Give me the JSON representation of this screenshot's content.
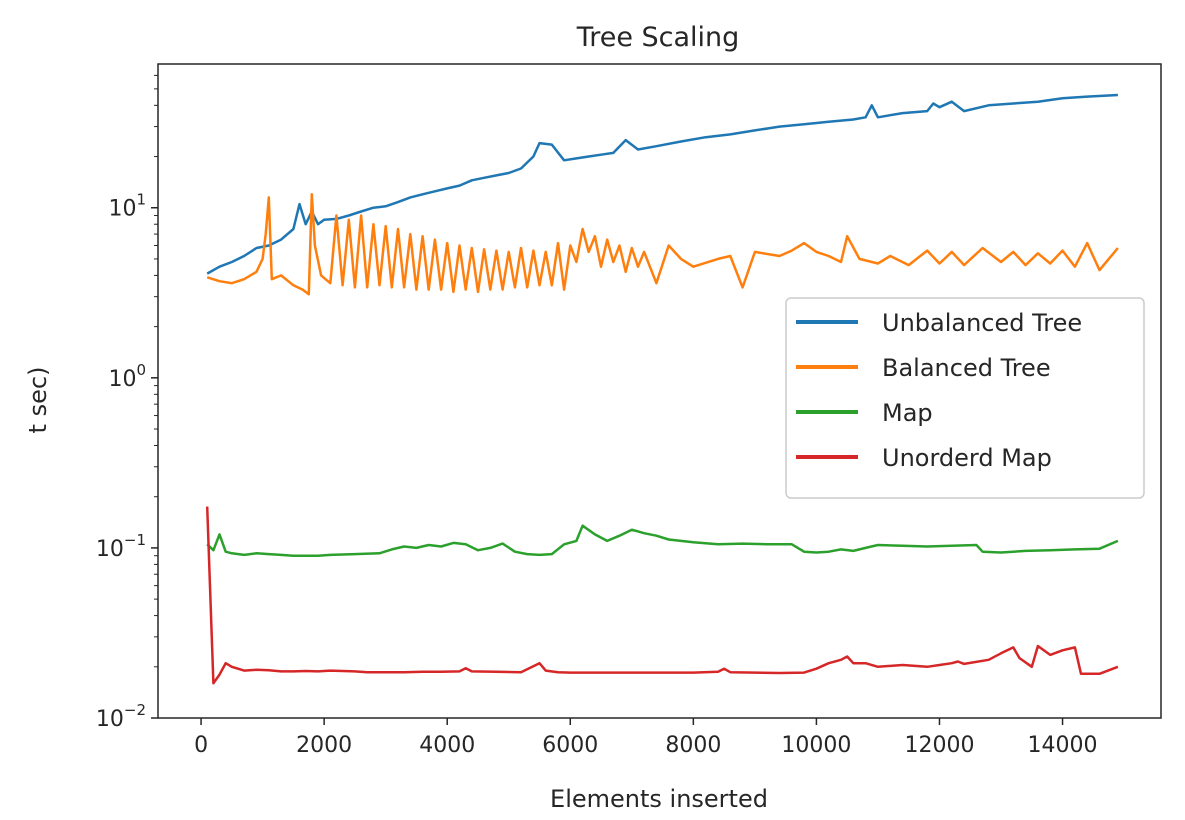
{
  "chart_data": {
    "type": "line",
    "title": "Tree Scaling",
    "xlabel": "Elements inserted",
    "ylabel": "t sec)",
    "xscale": "linear",
    "yscale": "log",
    "xlim": [
      -700,
      15600
    ],
    "ylim": [
      0.01,
      70
    ],
    "xticks": [
      0,
      2000,
      4000,
      6000,
      8000,
      10000,
      12000,
      14000
    ],
    "xtick_labels": [
      "0",
      "2000",
      "4000",
      "6000",
      "8000",
      "10000",
      "12000",
      "14000"
    ],
    "yticks": [
      0.01,
      0.1,
      1,
      10
    ],
    "ytick_labels": [
      {
        "base": "10",
        "exp": "−2"
      },
      {
        "base": "10",
        "exp": "−1"
      },
      {
        "base": "10",
        "exp": "0"
      },
      {
        "base": "10",
        "exp": "1"
      }
    ],
    "grid": false,
    "legend_position": "center-right",
    "series": [
      {
        "name": "Unbalanced Tree",
        "color": "#1f77b4",
        "x": [
          100,
          300,
          500,
          700,
          900,
          1100,
          1300,
          1500,
          1600,
          1700,
          1800,
          1900,
          2000,
          2200,
          2400,
          2600,
          2800,
          3000,
          3200,
          3400,
          3600,
          3800,
          4000,
          4200,
          4400,
          4600,
          4800,
          5000,
          5200,
          5400,
          5500,
          5700,
          5900,
          6100,
          6300,
          6500,
          6700,
          6900,
          7100,
          7400,
          7800,
          8200,
          8600,
          9000,
          9400,
          9800,
          10200,
          10600,
          10800,
          10900,
          11000,
          11400,
          11800,
          11900,
          12000,
          12200,
          12400,
          12800,
          13200,
          13600,
          14000,
          14400,
          14900
        ],
        "values": [
          4.1,
          4.5,
          4.8,
          5.2,
          5.8,
          6.0,
          6.5,
          7.5,
          10.5,
          8.0,
          9.5,
          8.0,
          8.5,
          8.6,
          9.0,
          9.5,
          10.0,
          10.2,
          10.8,
          11.5,
          12.0,
          12.5,
          13.0,
          13.5,
          14.5,
          15.0,
          15.5,
          16.0,
          17.0,
          20.0,
          24.0,
          23.5,
          19.0,
          19.5,
          20.0,
          20.5,
          21.0,
          25.0,
          22.0,
          23.0,
          24.5,
          26.0,
          27.0,
          28.5,
          30.0,
          31.0,
          32.0,
          33.0,
          34.0,
          40.0,
          34.0,
          36.0,
          37.0,
          41.0,
          39.0,
          42.0,
          37.0,
          40.0,
          41.0,
          42.0,
          44.0,
          45.0,
          46.0
        ]
      },
      {
        "name": "Balanced Tree",
        "color": "#ff7f0e",
        "x": [
          100,
          300,
          500,
          700,
          900,
          1000,
          1050,
          1100,
          1150,
          1300,
          1500,
          1650,
          1750,
          1800,
          1850,
          1950,
          2100,
          2200,
          2300,
          2400,
          2500,
          2600,
          2700,
          2800,
          2900,
          3000,
          3100,
          3200,
          3300,
          3400,
          3500,
          3600,
          3700,
          3800,
          3900,
          4000,
          4100,
          4200,
          4300,
          4400,
          4500,
          4600,
          4700,
          4800,
          4900,
          5000,
          5100,
          5200,
          5300,
          5400,
          5500,
          5600,
          5700,
          5800,
          5900,
          6000,
          6100,
          6200,
          6300,
          6400,
          6500,
          6600,
          6700,
          6800,
          6900,
          7000,
          7100,
          7200,
          7400,
          7600,
          7800,
          8000,
          8400,
          8600,
          8800,
          9000,
          9400,
          9600,
          9800,
          10000,
          10200,
          10400,
          10500,
          10700,
          11000,
          11200,
          11500,
          11800,
          12000,
          12200,
          12400,
          12700,
          13000,
          13200,
          13400,
          13600,
          13800,
          14000,
          14200,
          14400,
          14600,
          14900
        ],
        "values": [
          3.9,
          3.7,
          3.6,
          3.8,
          4.2,
          5.0,
          7.0,
          11.5,
          3.8,
          4.0,
          3.5,
          3.3,
          3.1,
          12.0,
          6.0,
          4.0,
          3.6,
          9.0,
          3.5,
          8.5,
          3.4,
          9.0,
          3.4,
          8.0,
          3.5,
          7.8,
          3.4,
          7.5,
          3.4,
          7.0,
          3.3,
          6.8,
          3.3,
          6.5,
          3.3,
          6.2,
          3.2,
          6.0,
          3.3,
          5.8,
          3.2,
          5.7,
          3.3,
          5.6,
          3.3,
          5.5,
          3.4,
          5.8,
          3.4,
          5.6,
          3.5,
          5.5,
          3.5,
          6.2,
          3.3,
          6.0,
          4.8,
          7.5,
          5.5,
          6.8,
          4.5,
          6.5,
          4.8,
          6.0,
          4.2,
          5.8,
          4.5,
          5.5,
          3.6,
          6.0,
          5.0,
          4.5,
          5.0,
          5.2,
          3.4,
          5.5,
          5.2,
          5.6,
          6.2,
          5.5,
          5.2,
          4.8,
          6.8,
          5.0,
          4.7,
          5.2,
          4.6,
          5.6,
          4.7,
          5.5,
          4.6,
          5.8,
          4.8,
          5.5,
          4.6,
          5.4,
          4.7,
          5.6,
          4.5,
          6.2,
          4.3,
          5.8
        ]
      },
      {
        "name": "Map",
        "color": "#2ca02c",
        "x": [
          100,
          200,
          300,
          400,
          500,
          700,
          900,
          1100,
          1300,
          1500,
          1700,
          1900,
          2100,
          2500,
          2900,
          3100,
          3300,
          3500,
          3700,
          3900,
          4100,
          4300,
          4500,
          4700,
          4900,
          5100,
          5300,
          5500,
          5700,
          5900,
          6100,
          6200,
          6400,
          6600,
          6800,
          7000,
          7200,
          7400,
          7600,
          8000,
          8400,
          8800,
          9200,
          9600,
          9800,
          10000,
          10200,
          10400,
          10600,
          10800,
          11000,
          11400,
          11800,
          12200,
          12600,
          12700,
          13000,
          13400,
          13800,
          14200,
          14600,
          14900
        ],
        "values": [
          0.105,
          0.097,
          0.12,
          0.095,
          0.093,
          0.091,
          0.093,
          0.092,
          0.091,
          0.09,
          0.09,
          0.09,
          0.091,
          0.092,
          0.093,
          0.098,
          0.102,
          0.1,
          0.104,
          0.102,
          0.107,
          0.105,
          0.097,
          0.1,
          0.106,
          0.095,
          0.092,
          0.091,
          0.092,
          0.105,
          0.11,
          0.135,
          0.12,
          0.11,
          0.118,
          0.128,
          0.122,
          0.118,
          0.112,
          0.108,
          0.105,
          0.106,
          0.105,
          0.105,
          0.095,
          0.094,
          0.095,
          0.098,
          0.096,
          0.1,
          0.104,
          0.103,
          0.102,
          0.103,
          0.104,
          0.095,
          0.094,
          0.096,
          0.097,
          0.098,
          0.099,
          0.11
        ]
      },
      {
        "name": "Unorderd Map",
        "color": "#d62728",
        "x": [
          100,
          200,
          300,
          400,
          500,
          700,
          900,
          1100,
          1300,
          1500,
          1700,
          1900,
          2100,
          2300,
          2500,
          2700,
          3000,
          3300,
          3600,
          3900,
          4200,
          4300,
          4400,
          4800,
          5200,
          5500,
          5600,
          5800,
          6000,
          6400,
          6800,
          7200,
          7600,
          8000,
          8400,
          8500,
          8600,
          9000,
          9400,
          9800,
          10000,
          10200,
          10400,
          10500,
          10600,
          10800,
          11000,
          11400,
          11800,
          12000,
          12200,
          12300,
          12400,
          12800,
          13000,
          13200,
          13300,
          13500,
          13600,
          13800,
          14000,
          14200,
          14300,
          14600,
          14900
        ],
        "values": [
          0.175,
          0.016,
          0.018,
          0.021,
          0.02,
          0.019,
          0.0192,
          0.0191,
          0.0188,
          0.0188,
          0.0189,
          0.0188,
          0.019,
          0.0189,
          0.0188,
          0.0186,
          0.0186,
          0.0186,
          0.0187,
          0.0187,
          0.0188,
          0.0196,
          0.0188,
          0.0187,
          0.0186,
          0.021,
          0.019,
          0.0186,
          0.0185,
          0.0185,
          0.0185,
          0.0185,
          0.0185,
          0.0185,
          0.0187,
          0.0195,
          0.0186,
          0.0185,
          0.0184,
          0.0185,
          0.0195,
          0.021,
          0.022,
          0.023,
          0.021,
          0.021,
          0.02,
          0.0205,
          0.02,
          0.0205,
          0.021,
          0.0215,
          0.0208,
          0.022,
          0.024,
          0.026,
          0.0225,
          0.02,
          0.0265,
          0.0235,
          0.025,
          0.026,
          0.0182,
          0.0182,
          0.02
        ]
      }
    ]
  }
}
